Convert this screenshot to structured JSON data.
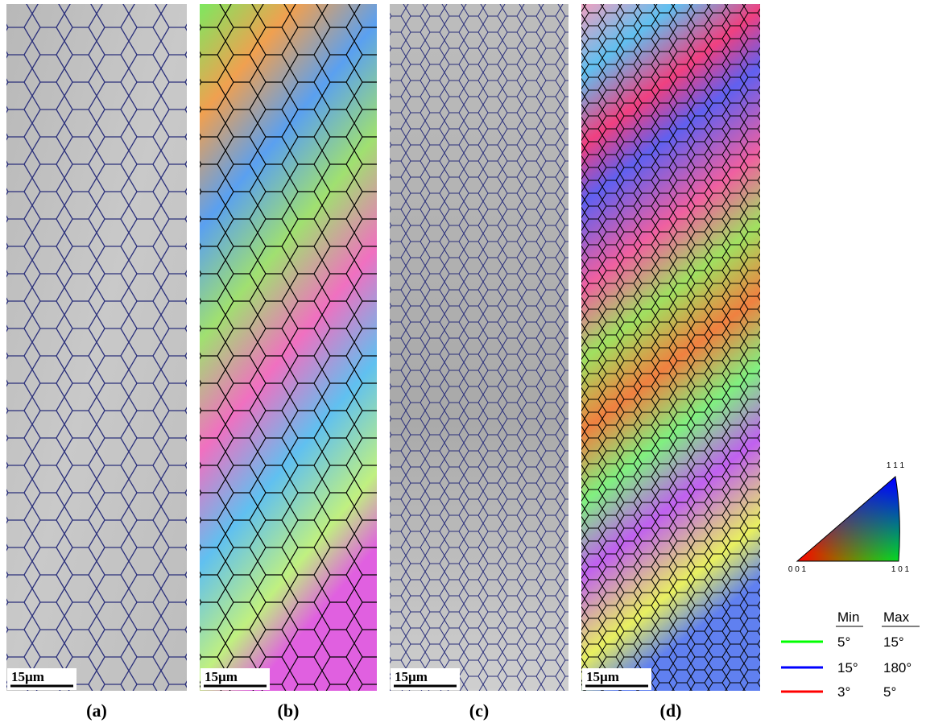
{
  "panels": [
    {
      "label": "(a)",
      "scale_bar": "15µm"
    },
    {
      "label": "(b)",
      "scale_bar": "15µm"
    },
    {
      "label": "(c)",
      "scale_bar": "15µm"
    },
    {
      "label": "(d)",
      "scale_bar": "15µm"
    }
  ],
  "ipf_key": {
    "top": "1 1 1",
    "left": "0 0 1",
    "right": "1 0 1"
  },
  "misorientation_legend": {
    "header": [
      "Min",
      "Max"
    ],
    "rows": [
      {
        "min": "5°",
        "max": "15°"
      },
      {
        "min": "15°",
        "max": "180°"
      },
      {
        "min": "3°",
        "max": "5°"
      }
    ]
  }
}
